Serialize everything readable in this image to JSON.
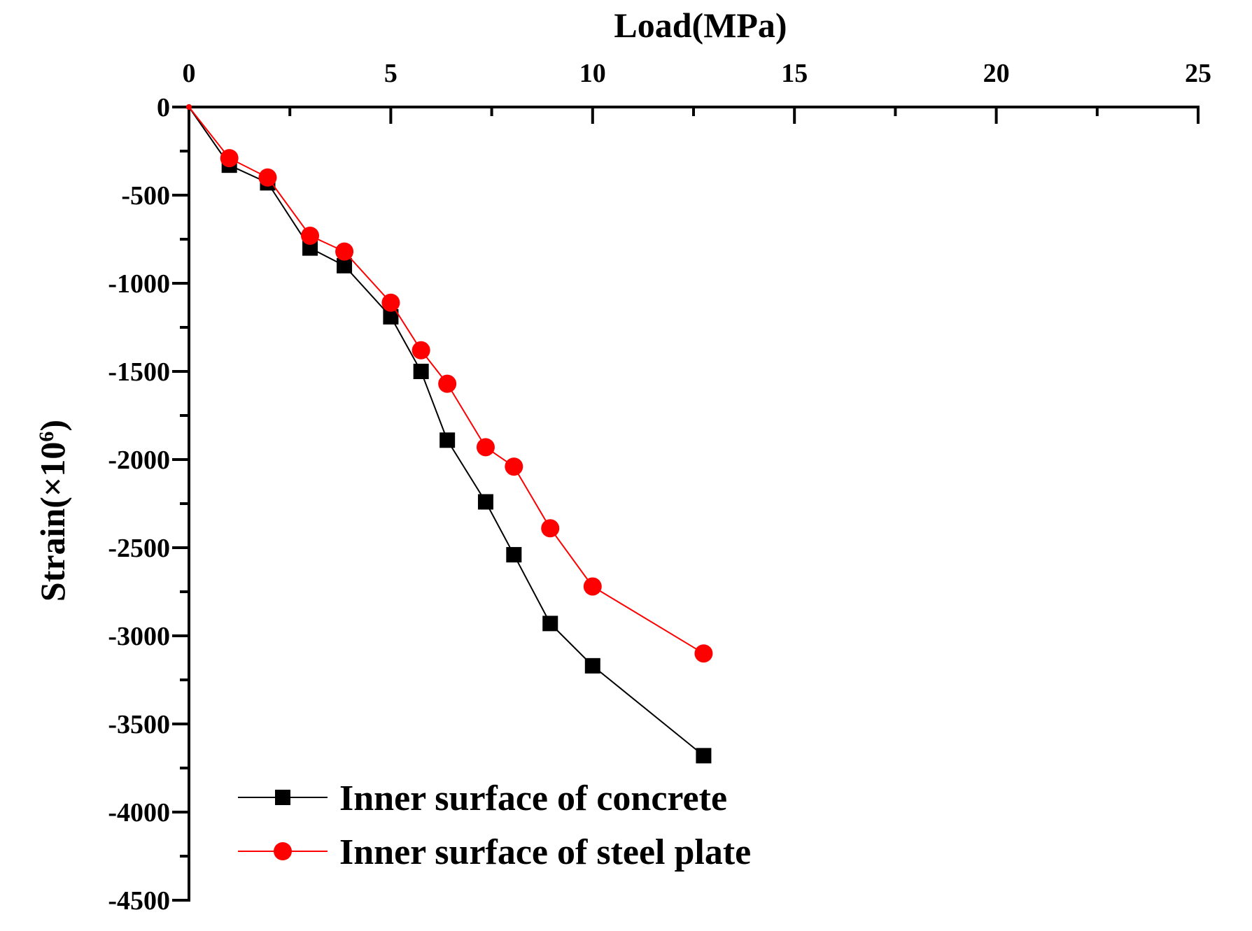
{
  "chart_data": {
    "type": "line",
    "title": "",
    "xlabel": "Load(MPa)",
    "ylabel_main": "Strain(×10",
    "ylabel_sup": "6",
    "ylabel_end": ")",
    "xlim": [
      0,
      25
    ],
    "ylim": [
      -4500,
      0
    ],
    "xticks": [
      0,
      5,
      10,
      15,
      20,
      25
    ],
    "yticks": [
      0,
      -500,
      -1000,
      -1500,
      -2000,
      -2500,
      -3000,
      -3500,
      -4000,
      -4500
    ],
    "x_axis_position": "top",
    "grid": false,
    "legend_position": "bottom-left",
    "series": [
      {
        "name": "Inner surface of concrete",
        "color": "#000000",
        "marker": "square",
        "x": [
          0,
          1.0,
          1.95,
          3.0,
          3.85,
          5.0,
          5.75,
          6.4,
          7.35,
          8.05,
          8.95,
          10.0,
          12.75
        ],
        "y": [
          0,
          -330,
          -430,
          -800,
          -900,
          -1190,
          -1500,
          -1890,
          -2240,
          -2540,
          -2930,
          -3170,
          -3680
        ]
      },
      {
        "name": "Inner surface of steel plate",
        "color": "#ff0000",
        "marker": "circle",
        "x": [
          0,
          1.0,
          1.95,
          3.0,
          3.85,
          5.0,
          5.75,
          6.4,
          7.35,
          8.05,
          8.95,
          10.0,
          12.75
        ],
        "y": [
          0,
          -290,
          -400,
          -730,
          -820,
          -1110,
          -1380,
          -1570,
          -1930,
          -2040,
          -2390,
          -2720,
          -3100
        ]
      }
    ]
  }
}
